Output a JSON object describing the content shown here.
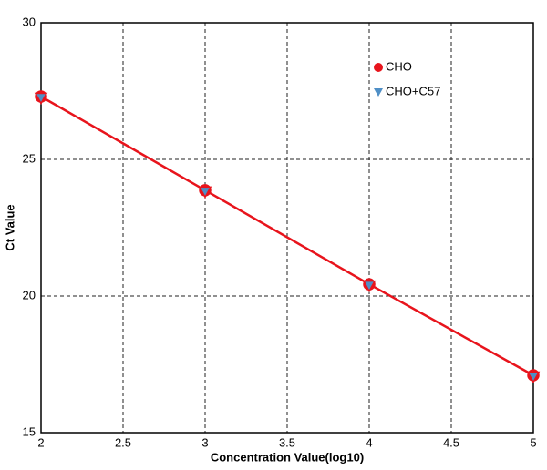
{
  "chart_data": {
    "type": "scatter",
    "xlabel": "Concentration Value(log10)",
    "ylabel": "Ct Value",
    "x": [
      2,
      3,
      4,
      5
    ],
    "series": [
      {
        "name": "CHO",
        "color": "#e8141c",
        "marker": "circle",
        "line": true,
        "values": [
          27.3,
          23.87,
          20.43,
          17.1
        ]
      },
      {
        "name": "CHO+C57",
        "color": "#4f8fc6",
        "marker": "triangle",
        "values": [
          27.25,
          23.82,
          20.38,
          17.05
        ]
      }
    ],
    "xlim": [
      2,
      5
    ],
    "xticks": [
      2,
      2.5,
      3,
      3.5,
      4,
      4.5,
      5
    ],
    "ylim": [
      15,
      30
    ],
    "yticks": [
      15,
      20,
      25,
      30
    ],
    "grid": true,
    "legend": "top-right"
  }
}
